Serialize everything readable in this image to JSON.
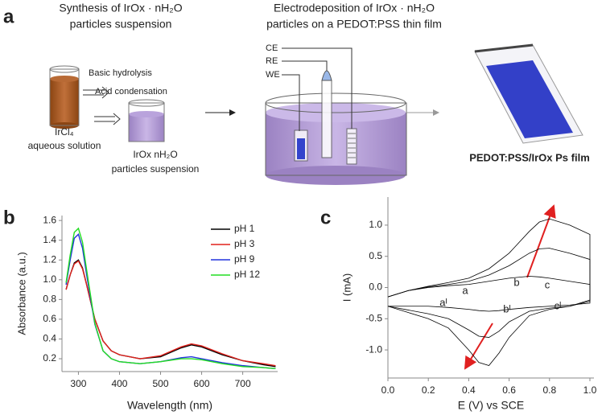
{
  "panel_labels": [
    "a",
    "b",
    "c"
  ],
  "schematic": {
    "synthesis_title": [
      "Synthesis of IrOx · nH₂O",
      "particles suspension"
    ],
    "electrodeposition_title": [
      "Electrodeposition of IrOx · nH₂O",
      "particles on a PEDOT:PSS thin film"
    ],
    "step1": "Basic hydrolysis",
    "step2": "Acid condensation",
    "precursor": [
      "IrCl₄",
      "aqueous solution"
    ],
    "suspension": [
      "IrOx  nH₂O",
      "particles suspension"
    ],
    "electrodes": [
      "CE",
      "RE",
      "WE"
    ],
    "product": "PEDOT:PSS/IrOx Ps film"
  },
  "chart_data": [
    {
      "type": "line",
      "xlabel": "Wavelength (nm)",
      "ylabel": "Absorbance (a.u.)",
      "x": [
        270,
        280,
        290,
        300,
        310,
        320,
        340,
        360,
        380,
        400,
        450,
        500,
        550,
        575,
        600,
        650,
        700,
        750,
        780
      ],
      "series": [
        {
          "name": "pH 1",
          "color": "#000000",
          "values": [
            0.9,
            1.05,
            1.17,
            1.2,
            1.12,
            0.95,
            0.6,
            0.38,
            0.28,
            0.24,
            0.2,
            0.22,
            0.31,
            0.34,
            0.32,
            0.24,
            0.18,
            0.14,
            0.12
          ]
        },
        {
          "name": "pH 3",
          "color": "#e0201b",
          "values": [
            0.9,
            1.05,
            1.16,
            1.19,
            1.11,
            0.95,
            0.6,
            0.38,
            0.28,
            0.24,
            0.2,
            0.23,
            0.32,
            0.35,
            0.33,
            0.25,
            0.18,
            0.15,
            0.13
          ]
        },
        {
          "name": "pH 9",
          "color": "#2233dd",
          "values": [
            0.95,
            1.2,
            1.42,
            1.46,
            1.32,
            1.05,
            0.55,
            0.28,
            0.2,
            0.17,
            0.15,
            0.17,
            0.21,
            0.22,
            0.2,
            0.16,
            0.13,
            0.11,
            0.1
          ]
        },
        {
          "name": "pH 12",
          "color": "#22dd22",
          "values": [
            0.97,
            1.25,
            1.48,
            1.52,
            1.38,
            1.1,
            0.56,
            0.28,
            0.2,
            0.17,
            0.15,
            0.17,
            0.2,
            0.2,
            0.19,
            0.15,
            0.12,
            0.11,
            0.1
          ]
        }
      ],
      "xlim": [
        260,
        785
      ],
      "ylim": [
        0.07,
        1.65
      ],
      "xticks": [
        300,
        400,
        500,
        600,
        700
      ],
      "yticks": [
        0.2,
        0.4,
        0.6,
        0.8,
        {
          "value": 1,
          "label": "1.0"
        },
        1.2,
        1.4,
        1.6
      ]
    },
    {
      "type": "line",
      "xlabel": "E (V) vs SCE",
      "ylabel": "I (mA)",
      "annotations": [
        "a",
        "aᴵ",
        "b",
        "c",
        "bᴵ",
        "cᴵ"
      ],
      "series": [
        {
          "color": "#000000",
          "x": [
            0,
            0.1,
            0.2,
            0.3,
            0.4,
            0.5,
            0.6,
            0.7,
            0.75,
            0.8,
            0.9,
            1,
            1,
            0.9,
            0.8,
            0.7,
            0.6,
            0.55,
            0.5,
            0.45,
            0.4,
            0.3,
            0.2,
            0.1,
            0
          ],
          "values": [
            -0.15,
            -0.05,
            0.02,
            0.08,
            0.15,
            0.3,
            0.55,
            0.9,
            1.05,
            1.1,
            1.0,
            0.85,
            -0.2,
            -0.3,
            -0.35,
            -0.45,
            -0.8,
            -1.05,
            -1.25,
            -1.2,
            -1.0,
            -0.65,
            -0.5,
            -0.4,
            -0.3
          ]
        },
        {
          "color": "#000000",
          "x": [
            0,
            0.1,
            0.2,
            0.3,
            0.4,
            0.5,
            0.6,
            0.7,
            0.75,
            0.8,
            0.9,
            1,
            1,
            0.9,
            0.8,
            0.7,
            0.6,
            0.55,
            0.5,
            0.45,
            0.4,
            0.3,
            0.2,
            0.1,
            0
          ],
          "values": [
            -0.15,
            -0.05,
            0.01,
            0.05,
            0.1,
            0.2,
            0.35,
            0.55,
            0.62,
            0.63,
            0.55,
            0.45,
            -0.22,
            -0.3,
            -0.33,
            -0.38,
            -0.55,
            -0.7,
            -0.8,
            -0.78,
            -0.68,
            -0.5,
            -0.42,
            -0.36,
            -0.3
          ]
        },
        {
          "color": "#000000",
          "x": [
            0,
            0.1,
            0.2,
            0.3,
            0.4,
            0.5,
            0.6,
            0.7,
            0.75,
            0.8,
            0.9,
            1,
            1,
            0.9,
            0.8,
            0.7,
            0.6,
            0.55,
            0.5,
            0.45,
            0.4,
            0.3,
            0.2,
            0.1,
            0
          ],
          "values": [
            -0.15,
            -0.05,
            0,
            0.03,
            0.05,
            0.1,
            0.15,
            0.18,
            0.17,
            0.15,
            0.1,
            0.05,
            -0.25,
            -0.28,
            -0.3,
            -0.32,
            -0.35,
            -0.37,
            -0.38,
            -0.37,
            -0.35,
            -0.32,
            -0.3,
            -0.3,
            -0.3
          ]
        }
      ],
      "xlim": [
        0,
        1.02
      ],
      "ylim": [
        -1.45,
        1.45
      ],
      "xticks": [
        {
          "value": 0,
          "label": "0.0"
        },
        0.2,
        0.4,
        0.6,
        0.8,
        {
          "value": 1,
          "label": "1.0"
        }
      ],
      "yticks": [
        {
          "value": 1,
          "label": "1.0"
        },
        0.5,
        {
          "value": 0,
          "label": "0.0"
        },
        -0.5,
        {
          "value": -1,
          "label": "-1.0"
        }
      ]
    }
  ]
}
